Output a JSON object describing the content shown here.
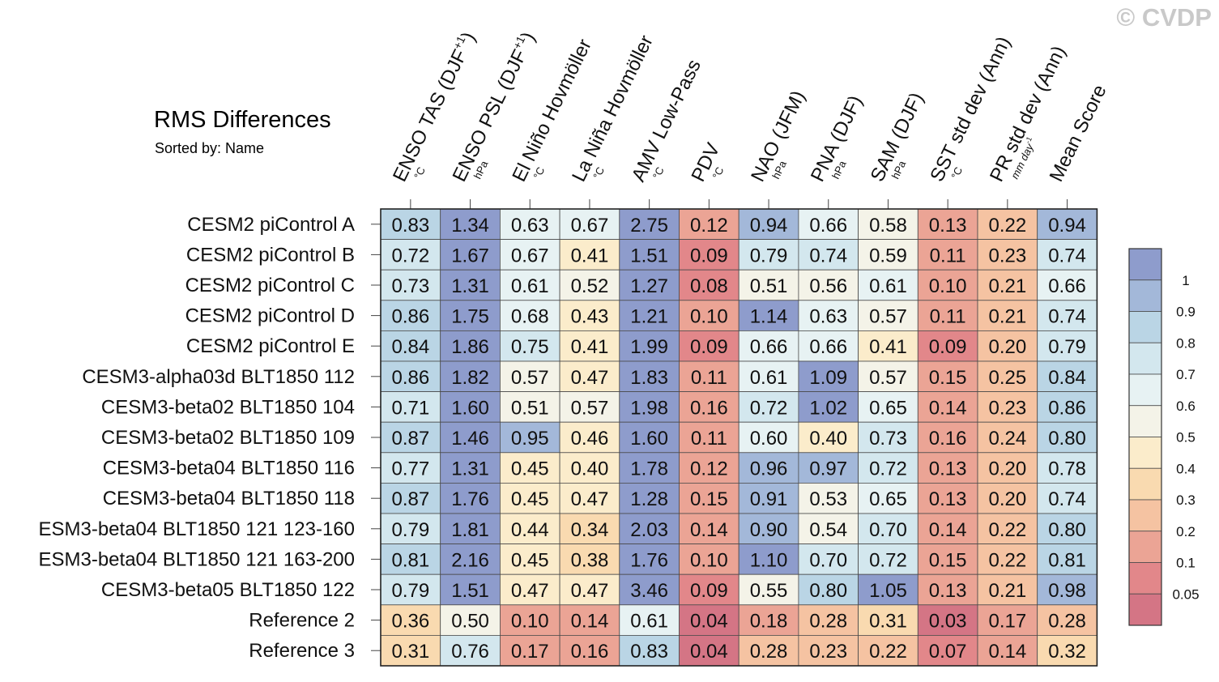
{
  "watermark": "© CVDP",
  "chart_data": {
    "type": "heatmap",
    "title": "RMS Differences",
    "subtitle": "Sorted by: Name",
    "columns": [
      {
        "label": "ENSO TAS (DJF",
        "sup": "+1",
        "tail": ")",
        "unit": "°C",
        "unit_sup": ""
      },
      {
        "label": "ENSO PSL (DJF",
        "sup": "+1",
        "tail": ")",
        "unit": "hPa",
        "unit_sup": ""
      },
      {
        "label": "El Niño Hovmöller",
        "sup": "",
        "tail": "",
        "unit": "°C",
        "unit_sup": ""
      },
      {
        "label": "La Niña Hovmöller",
        "sup": "",
        "tail": "",
        "unit": "°C",
        "unit_sup": ""
      },
      {
        "label": "AMV Low-Pass",
        "sup": "",
        "tail": "",
        "unit": "°C",
        "unit_sup": ""
      },
      {
        "label": "PDV",
        "sup": "",
        "tail": "",
        "unit": "°C",
        "unit_sup": ""
      },
      {
        "label": "NAO (JFM)",
        "sup": "",
        "tail": "",
        "unit": "hPa",
        "unit_sup": ""
      },
      {
        "label": "PNA (DJF)",
        "sup": "",
        "tail": "",
        "unit": "hPa",
        "unit_sup": ""
      },
      {
        "label": "SAM (DJF)",
        "sup": "",
        "tail": "",
        "unit": "hPa",
        "unit_sup": ""
      },
      {
        "label": "SST std dev (Ann)",
        "sup": "",
        "tail": "",
        "unit": "°C",
        "unit_sup": ""
      },
      {
        "label": "PR std dev (Ann)",
        "sup": "",
        "tail": "",
        "unit": "mm day",
        "unit_sup": "-1"
      },
      {
        "label": "Mean Score",
        "sup": "",
        "tail": "",
        "unit": "",
        "unit_sup": ""
      }
    ],
    "rows": [
      "CESM2 piControl A",
      "CESM2 piControl B",
      "CESM2 piControl C",
      "CESM2 piControl D",
      "CESM2 piControl E",
      "CESM3-alpha03d BLT1850 112",
      "CESM3-beta02 BLT1850 104",
      "CESM3-beta02 BLT1850 109",
      "CESM3-beta04 BLT1850 116",
      "CESM3-beta04 BLT1850 118",
      "ESM3-beta04 BLT1850 121 123-160",
      "ESM3-beta04 BLT1850 121 163-200",
      "CESM3-beta05 BLT1850 122",
      "Reference 2",
      "Reference 3"
    ],
    "values": [
      [
        "0.83",
        "1.34",
        "0.63",
        "0.67",
        "2.75",
        "0.12",
        "0.94",
        "0.66",
        "0.58",
        "0.13",
        "0.22",
        "0.94"
      ],
      [
        "0.72",
        "1.67",
        "0.67",
        "0.41",
        "1.51",
        "0.09",
        "0.79",
        "0.74",
        "0.59",
        "0.11",
        "0.23",
        "0.74"
      ],
      [
        "0.73",
        "1.31",
        "0.61",
        "0.52",
        "1.27",
        "0.08",
        "0.51",
        "0.56",
        "0.61",
        "0.10",
        "0.21",
        "0.66"
      ],
      [
        "0.86",
        "1.75",
        "0.68",
        "0.43",
        "1.21",
        "0.10",
        "1.14",
        "0.63",
        "0.57",
        "0.11",
        "0.21",
        "0.74"
      ],
      [
        "0.84",
        "1.86",
        "0.75",
        "0.41",
        "1.99",
        "0.09",
        "0.66",
        "0.66",
        "0.41",
        "0.09",
        "0.20",
        "0.79"
      ],
      [
        "0.86",
        "1.82",
        "0.57",
        "0.47",
        "1.83",
        "0.11",
        "0.61",
        "1.09",
        "0.57",
        "0.15",
        "0.25",
        "0.84"
      ],
      [
        "0.71",
        "1.60",
        "0.51",
        "0.57",
        "1.98",
        "0.16",
        "0.72",
        "1.02",
        "0.65",
        "0.14",
        "0.23",
        "0.86"
      ],
      [
        "0.87",
        "1.46",
        "0.95",
        "0.46",
        "1.60",
        "0.11",
        "0.60",
        "0.40",
        "0.73",
        "0.16",
        "0.24",
        "0.80"
      ],
      [
        "0.77",
        "1.31",
        "0.45",
        "0.40",
        "1.78",
        "0.12",
        "0.96",
        "0.97",
        "0.72",
        "0.13",
        "0.20",
        "0.78"
      ],
      [
        "0.87",
        "1.76",
        "0.45",
        "0.47",
        "1.28",
        "0.15",
        "0.91",
        "0.53",
        "0.65",
        "0.13",
        "0.20",
        "0.74"
      ],
      [
        "0.79",
        "1.81",
        "0.44",
        "0.34",
        "2.03",
        "0.14",
        "0.90",
        "0.54",
        "0.70",
        "0.14",
        "0.22",
        "0.80"
      ],
      [
        "0.81",
        "2.16",
        "0.45",
        "0.38",
        "1.76",
        "0.10",
        "1.10",
        "0.70",
        "0.72",
        "0.15",
        "0.22",
        "0.81"
      ],
      [
        "0.79",
        "1.51",
        "0.47",
        "0.47",
        "3.46",
        "0.09",
        "0.55",
        "0.80",
        "1.05",
        "0.13",
        "0.21",
        "0.98"
      ],
      [
        "0.36",
        "0.50",
        "0.10",
        "0.14",
        "0.61",
        "0.04",
        "0.18",
        "0.28",
        "0.31",
        "0.03",
        "0.17",
        "0.28"
      ],
      [
        "0.31",
        "0.76",
        "0.17",
        "0.16",
        "0.83",
        "0.04",
        "0.28",
        "0.23",
        "0.22",
        "0.07",
        "0.14",
        "0.32"
      ]
    ],
    "colorbar": {
      "levels": [
        "1",
        "0.9",
        "0.8",
        "0.7",
        "0.6",
        "0.5",
        "0.4",
        "0.3",
        "0.2",
        "0.1",
        "0.05"
      ],
      "thresholds": [
        1,
        0.9,
        0.8,
        0.7,
        0.6,
        0.5,
        0.4,
        0.3,
        0.2,
        0.1,
        0.05
      ],
      "colors": [
        "#8e9ccc",
        "#a3b8d9",
        "#bad5e5",
        "#d3e7ee",
        "#e7f2f3",
        "#f4f3e8",
        "#fbeccb",
        "#f9dab0",
        "#f5c3a2",
        "#eba495",
        "#e2878a",
        "#d47585"
      ]
    }
  }
}
